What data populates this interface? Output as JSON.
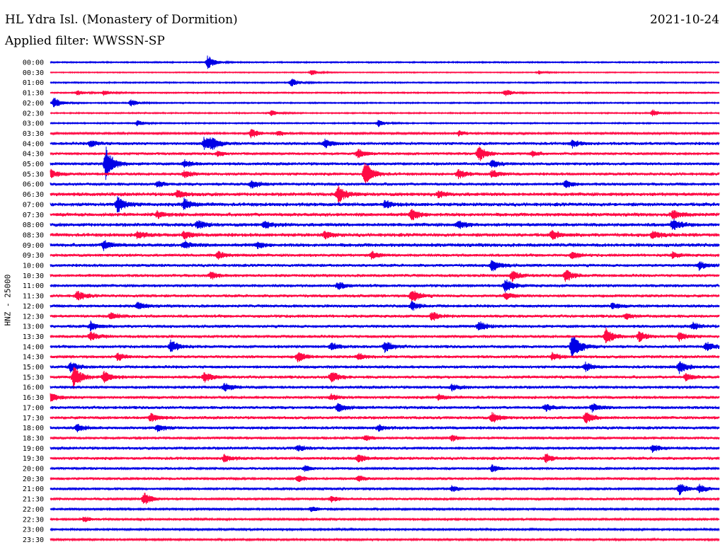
{
  "header": {
    "station": "HL Ydra Isl. (Monastery of Dormition)",
    "date": "2021-10-24",
    "filter": "Applied filter: WWSSN-SP"
  },
  "side_label": "HNZ - 25000",
  "colors": {
    "blue": "#0000e6",
    "red": "#ff0a45"
  },
  "chart_data": {
    "type": "line",
    "title": "",
    "xlabel": "",
    "ylabel": "HNZ - 25000",
    "legend": "none",
    "grid": false,
    "traces": [
      {
        "label": "00:00",
        "color": "blue",
        "noise": 1.0,
        "events": [
          [
            0.235,
            10
          ]
        ]
      },
      {
        "label": "00:30",
        "color": "red",
        "noise": 0.8,
        "events": [
          [
            0.39,
            4
          ],
          [
            0.73,
            3
          ]
        ]
      },
      {
        "label": "01:00",
        "color": "blue",
        "noise": 1.0,
        "events": [
          [
            0.36,
            6
          ]
        ]
      },
      {
        "label": "01:30",
        "color": "red",
        "noise": 1.0,
        "events": [
          [
            0.04,
            4
          ],
          [
            0.08,
            4
          ],
          [
            0.68,
            5
          ]
        ]
      },
      {
        "label": "02:00",
        "color": "blue",
        "noise": 1.0,
        "events": [
          [
            0.005,
            8
          ],
          [
            0.12,
            5
          ]
        ]
      },
      {
        "label": "02:30",
        "color": "red",
        "noise": 1.0,
        "events": [
          [
            0.33,
            4
          ],
          [
            0.9,
            5
          ]
        ]
      },
      {
        "label": "03:00",
        "color": "blue",
        "noise": 1.0,
        "events": [
          [
            0.13,
            4
          ],
          [
            0.49,
            5
          ]
        ]
      },
      {
        "label": "03:30",
        "color": "red",
        "noise": 1.5,
        "events": [
          [
            0.3,
            7
          ],
          [
            0.34,
            4
          ],
          [
            0.61,
            4
          ]
        ]
      },
      {
        "label": "04:00",
        "color": "blue",
        "noise": 2.5,
        "events": [
          [
            0.06,
            5
          ],
          [
            0.23,
            9
          ],
          [
            0.24,
            7
          ],
          [
            0.41,
            6
          ],
          [
            0.78,
            5
          ]
        ]
      },
      {
        "label": "04:30",
        "color": "red",
        "noise": 2.0,
        "events": [
          [
            0.25,
            4
          ],
          [
            0.46,
            7
          ],
          [
            0.64,
            12
          ],
          [
            0.72,
            4
          ]
        ]
      },
      {
        "label": "05:00",
        "color": "blue",
        "noise": 2.5,
        "events": [
          [
            0.083,
            24
          ],
          [
            0.2,
            5
          ],
          [
            0.66,
            5
          ]
        ]
      },
      {
        "label": "05:30",
        "color": "red",
        "noise": 2.5,
        "events": [
          [
            0.0,
            6
          ],
          [
            0.2,
            5
          ],
          [
            0.47,
            18
          ],
          [
            0.61,
            6
          ],
          [
            0.66,
            5
          ]
        ]
      },
      {
        "label": "06:00",
        "color": "blue",
        "noise": 2.5,
        "events": [
          [
            0.16,
            4
          ],
          [
            0.3,
            6
          ],
          [
            0.77,
            5
          ]
        ]
      },
      {
        "label": "06:30",
        "color": "red",
        "noise": 3.0,
        "events": [
          [
            0.19,
            5
          ],
          [
            0.43,
            12
          ],
          [
            0.58,
            4
          ]
        ]
      },
      {
        "label": "07:00",
        "color": "blue",
        "noise": 3.0,
        "events": [
          [
            0.1,
            12
          ],
          [
            0.2,
            8
          ],
          [
            0.5,
            5
          ]
        ]
      },
      {
        "label": "07:30",
        "color": "red",
        "noise": 3.0,
        "events": [
          [
            0.16,
            4
          ],
          [
            0.54,
            8
          ],
          [
            0.93,
            6
          ]
        ]
      },
      {
        "label": "08:00",
        "color": "blue",
        "noise": 3.0,
        "events": [
          [
            0.22,
            6
          ],
          [
            0.32,
            5
          ],
          [
            0.61,
            5
          ],
          [
            0.93,
            8
          ]
        ]
      },
      {
        "label": "08:30",
        "color": "red",
        "noise": 3.0,
        "events": [
          [
            0.13,
            5
          ],
          [
            0.2,
            5
          ],
          [
            0.41,
            5
          ],
          [
            0.75,
            6
          ],
          [
            0.9,
            6
          ]
        ]
      },
      {
        "label": "09:00",
        "color": "blue",
        "noise": 3.0,
        "events": [
          [
            0.08,
            7
          ],
          [
            0.2,
            5
          ],
          [
            0.31,
            4
          ]
        ]
      },
      {
        "label": "09:30",
        "color": "red",
        "noise": 2.5,
        "events": [
          [
            0.25,
            6
          ],
          [
            0.48,
            5
          ],
          [
            0.78,
            5
          ],
          [
            0.93,
            4
          ]
        ]
      },
      {
        "label": "10:00",
        "color": "blue",
        "noise": 2.5,
        "events": [
          [
            0.66,
            9
          ],
          [
            0.97,
            6
          ]
        ]
      },
      {
        "label": "10:30",
        "color": "red",
        "noise": 2.5,
        "events": [
          [
            0.24,
            5
          ],
          [
            0.69,
            7
          ],
          [
            0.77,
            9
          ]
        ]
      },
      {
        "label": "11:00",
        "color": "blue",
        "noise": 2.5,
        "events": [
          [
            0.43,
            5
          ],
          [
            0.68,
            9
          ]
        ]
      },
      {
        "label": "11:30",
        "color": "red",
        "noise": 2.5,
        "events": [
          [
            0.04,
            7
          ],
          [
            0.54,
            10
          ],
          [
            0.68,
            5
          ]
        ]
      },
      {
        "label": "12:00",
        "color": "blue",
        "noise": 2.5,
        "events": [
          [
            0.13,
            5
          ],
          [
            0.54,
            6
          ],
          [
            0.84,
            4
          ]
        ]
      },
      {
        "label": "12:30",
        "color": "red",
        "noise": 2.5,
        "events": [
          [
            0.09,
            5
          ],
          [
            0.57,
            6
          ],
          [
            0.86,
            4
          ]
        ]
      },
      {
        "label": "13:00",
        "color": "blue",
        "noise": 2.5,
        "events": [
          [
            0.06,
            6
          ],
          [
            0.64,
            8
          ],
          [
            0.96,
            5
          ]
        ]
      },
      {
        "label": "13:30",
        "color": "red",
        "noise": 2.5,
        "events": [
          [
            0.06,
            6
          ],
          [
            0.83,
            12
          ],
          [
            0.88,
            7
          ],
          [
            0.94,
            6
          ]
        ]
      },
      {
        "label": "14:00",
        "color": "blue",
        "noise": 2.5,
        "events": [
          [
            0.18,
            9
          ],
          [
            0.42,
            5
          ],
          [
            0.5,
            8
          ],
          [
            0.78,
            22
          ],
          [
            0.98,
            6
          ]
        ]
      },
      {
        "label": "14:30",
        "color": "red",
        "noise": 2.5,
        "events": [
          [
            0.1,
            5
          ],
          [
            0.37,
            7
          ],
          [
            0.46,
            5
          ],
          [
            0.75,
            5
          ]
        ]
      },
      {
        "label": "15:00",
        "color": "blue",
        "noise": 2.5,
        "events": [
          [
            0.03,
            7
          ],
          [
            0.8,
            6
          ],
          [
            0.94,
            9
          ]
        ]
      },
      {
        "label": "15:30",
        "color": "red",
        "noise": 2.5,
        "events": [
          [
            0.035,
            16
          ],
          [
            0.08,
            8
          ],
          [
            0.23,
            7
          ],
          [
            0.42,
            8
          ],
          [
            0.95,
            5
          ]
        ]
      },
      {
        "label": "16:00",
        "color": "blue",
        "noise": 2.5,
        "events": [
          [
            0.26,
            6
          ],
          [
            0.6,
            4
          ]
        ]
      },
      {
        "label": "16:30",
        "color": "red",
        "noise": 2.5,
        "events": [
          [
            0.0,
            6
          ],
          [
            0.42,
            4
          ],
          [
            0.58,
            4
          ]
        ]
      },
      {
        "label": "17:00",
        "color": "blue",
        "noise": 2.5,
        "events": [
          [
            0.43,
            7
          ],
          [
            0.74,
            5
          ],
          [
            0.81,
            6
          ]
        ]
      },
      {
        "label": "17:30",
        "color": "red",
        "noise": 2.5,
        "events": [
          [
            0.15,
            6
          ],
          [
            0.66,
            7
          ],
          [
            0.8,
            8
          ]
        ]
      },
      {
        "label": "18:00",
        "color": "blue",
        "noise": 2.5,
        "events": [
          [
            0.04,
            5
          ],
          [
            0.16,
            5
          ],
          [
            0.49,
            4
          ]
        ]
      },
      {
        "label": "18:30",
        "color": "red",
        "noise": 2.0,
        "events": [
          [
            0.47,
            4
          ],
          [
            0.6,
            4
          ]
        ]
      },
      {
        "label": "19:00",
        "color": "blue",
        "noise": 2.5,
        "events": [
          [
            0.37,
            4
          ],
          [
            0.9,
            5
          ]
        ]
      },
      {
        "label": "19:30",
        "color": "red",
        "noise": 2.5,
        "events": [
          [
            0.26,
            5
          ],
          [
            0.46,
            6
          ],
          [
            0.74,
            6
          ]
        ]
      },
      {
        "label": "20:00",
        "color": "blue",
        "noise": 2.0,
        "events": [
          [
            0.38,
            4
          ],
          [
            0.66,
            5
          ]
        ]
      },
      {
        "label": "20:30",
        "color": "red",
        "noise": 2.0,
        "events": [
          [
            0.37,
            5
          ],
          [
            0.46,
            4
          ]
        ]
      },
      {
        "label": "21:00",
        "color": "blue",
        "noise": 2.0,
        "events": [
          [
            0.6,
            4
          ],
          [
            0.94,
            8
          ],
          [
            0.97,
            6
          ]
        ]
      },
      {
        "label": "21:30",
        "color": "red",
        "noise": 2.0,
        "events": [
          [
            0.14,
            9
          ],
          [
            0.42,
            4
          ]
        ]
      },
      {
        "label": "22:00",
        "color": "blue",
        "noise": 1.5,
        "events": [
          [
            0.39,
            4
          ]
        ]
      },
      {
        "label": "22:30",
        "color": "red",
        "noise": 1.5,
        "events": [
          [
            0.05,
            4
          ]
        ]
      },
      {
        "label": "23:00",
        "color": "blue",
        "noise": 1.5,
        "events": []
      },
      {
        "label": "23:30",
        "color": "red",
        "noise": 1.5,
        "events": []
      }
    ]
  }
}
